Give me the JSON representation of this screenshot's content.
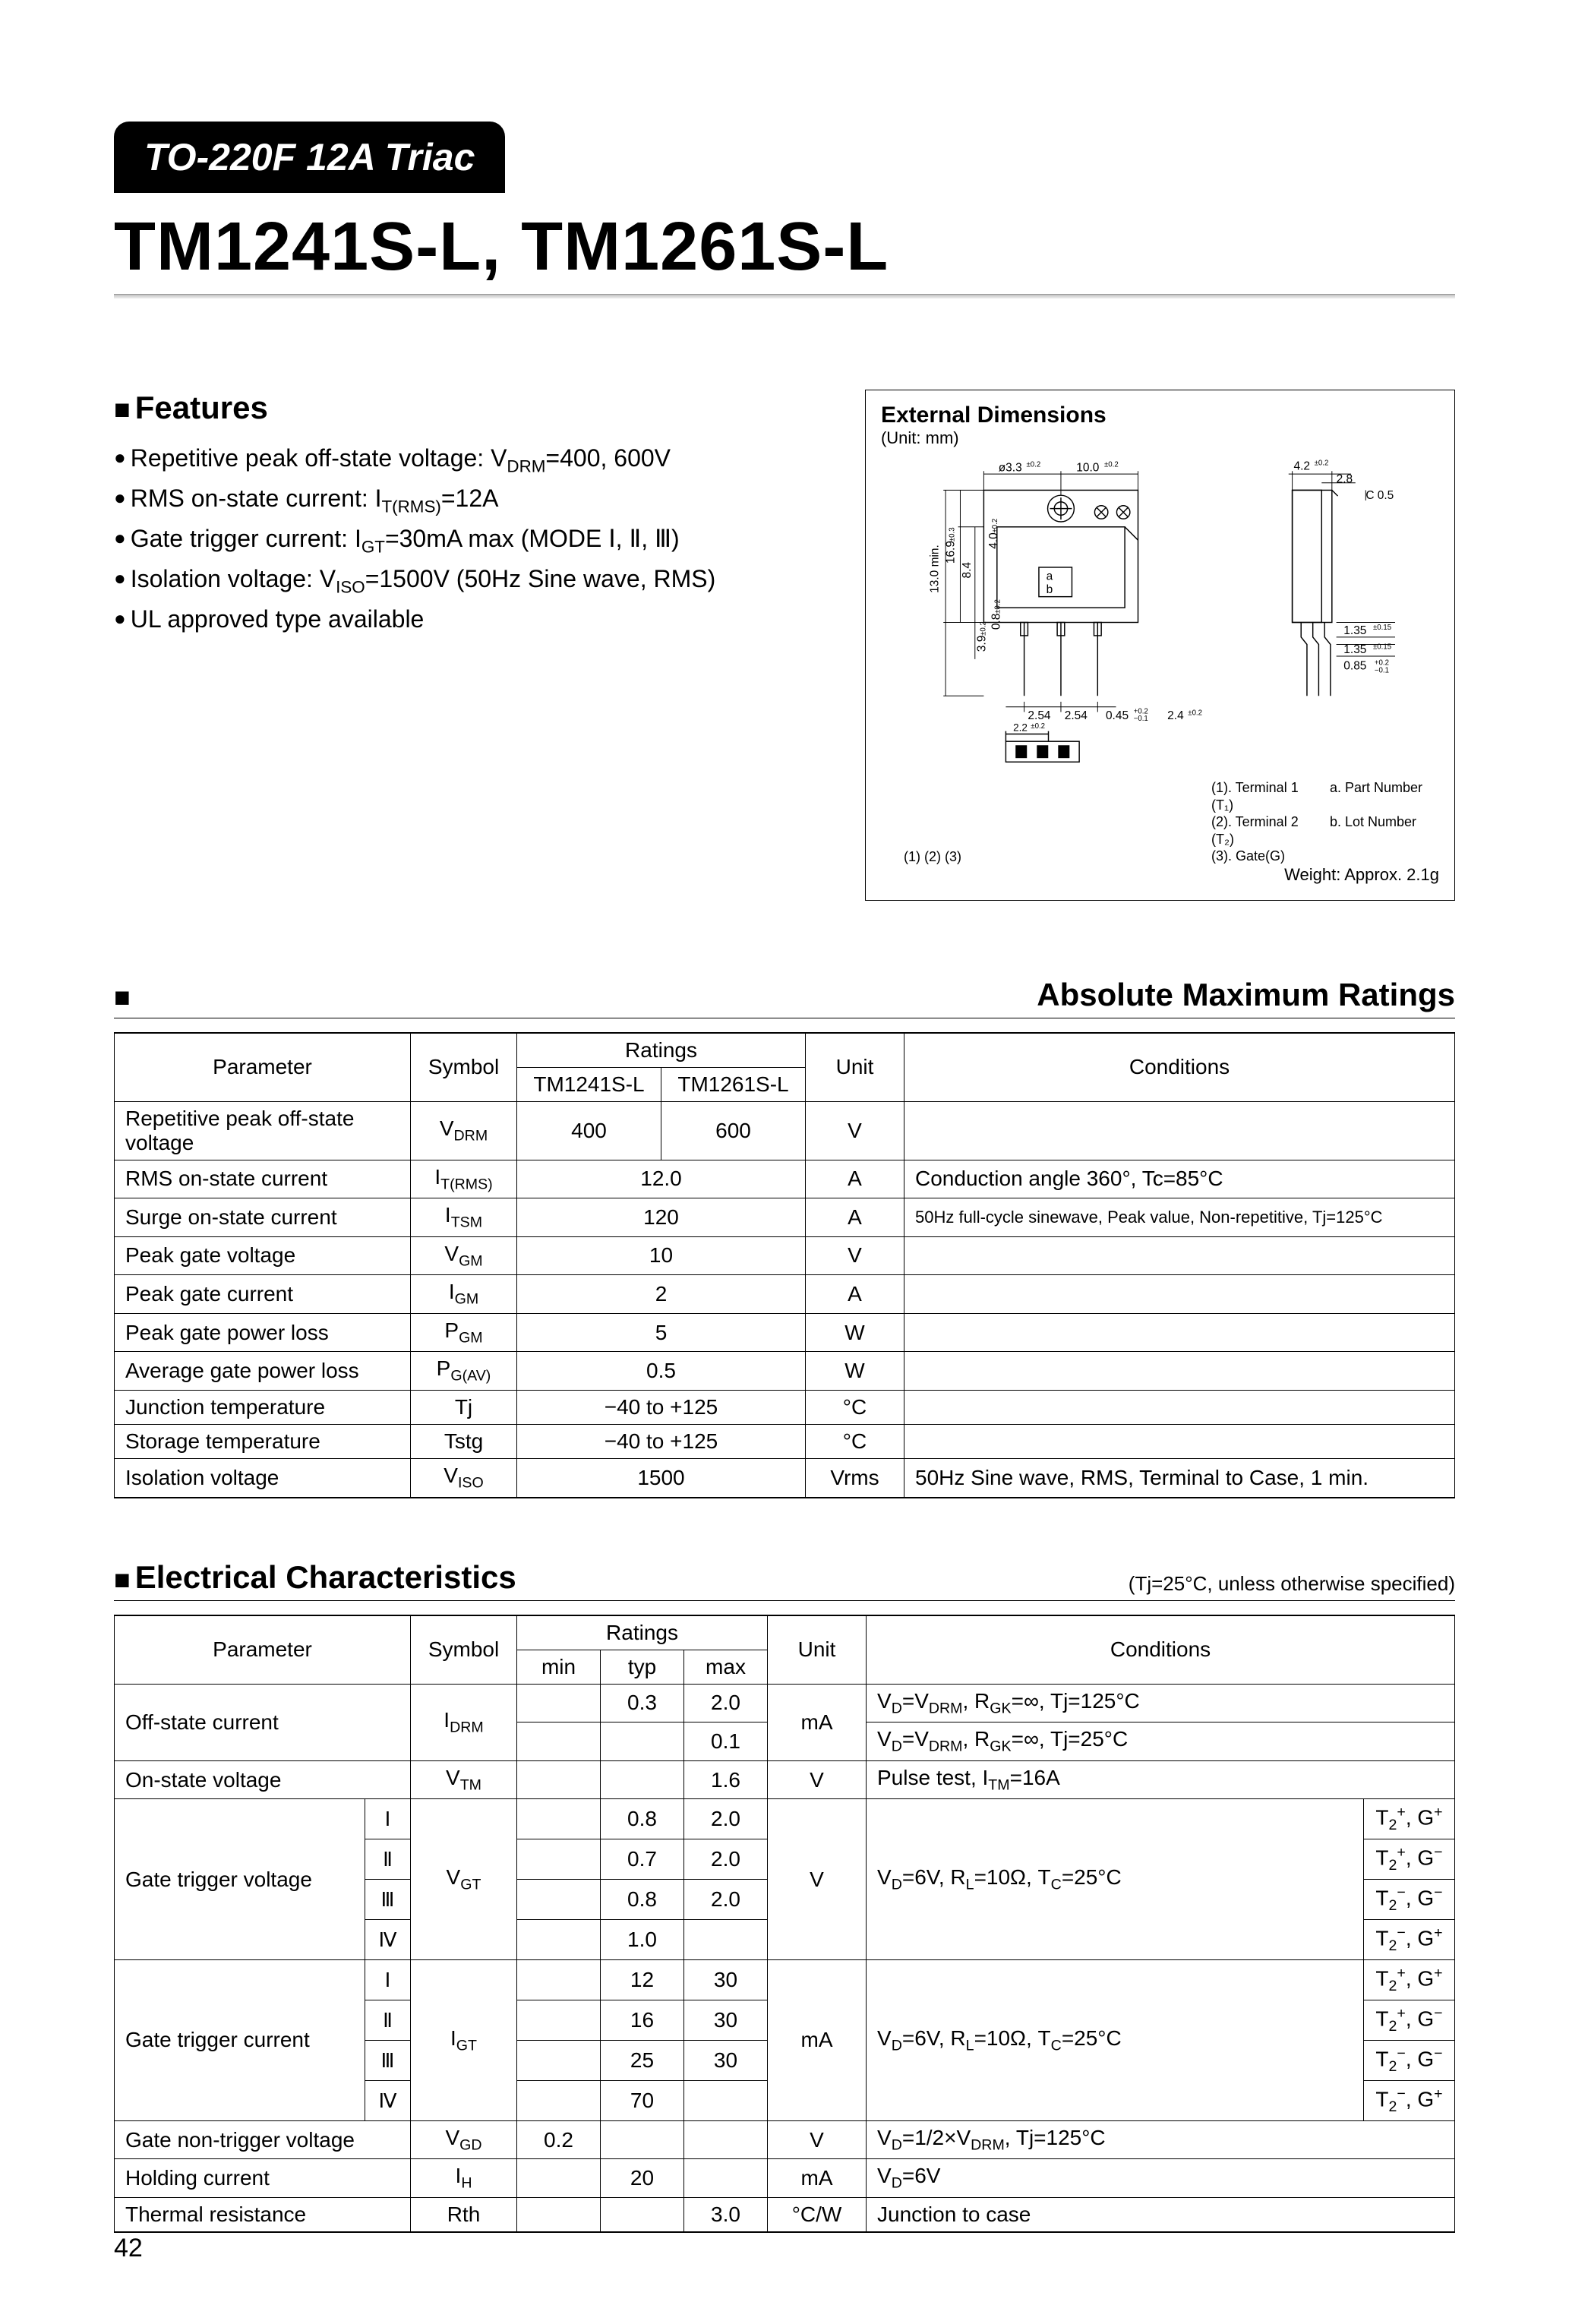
{
  "badge": "TO-220F 12A Triac",
  "main_title": "TM1241S-L, TM1261S-L",
  "features_heading": "Features",
  "features": [
    {
      "html": "Repetitive peak off-state voltage: V<span class=\"sub\">DRM</span>=400, 600V"
    },
    {
      "html": "RMS on-state current: I<span class=\"sub\">T(RMS)</span>=12A"
    },
    {
      "html": "Gate trigger current: I<span class=\"sub\">GT</span>=30mA max (MODE Ⅰ, Ⅱ, Ⅲ)"
    },
    {
      "html": "Isolation voltage: V<span class=\"sub\">ISO</span>=1500V (50Hz Sine wave, RMS)"
    },
    {
      "html": "UL approved type available"
    }
  ],
  "ext": {
    "title": "External Dimensions",
    "unit": "(Unit: mm)",
    "dim_labels": [
      "ø3.3",
      "±0.2",
      "10.0",
      "±0.2",
      "16.9",
      "±0.3",
      "8.4",
      "4.0",
      "±0.2",
      "13.0 min.",
      "3.9",
      "±0.2",
      "0.8",
      "±0.2",
      "2.54",
      "2.54",
      "2.2",
      "±0.2",
      "0.45",
      "+0.2",
      "−0.1",
      "2.4",
      "±0.2",
      "4.2",
      "±0.2",
      "2.8",
      "C 0.5",
      "1.35",
      "±0.15",
      "1.35",
      "±0.15",
      "0.85",
      "+0.2",
      "−0.1",
      "a",
      "b"
    ],
    "legend": [
      "(1). Terminal 1 (T₁)",
      "(2). Terminal 2 (T₂)",
      "(3). Gate(G)",
      "a. Part Number",
      "b. Lot Number"
    ],
    "pins_label": "(1) (2) (3)",
    "weight": "Weight: Approx. 2.1g"
  },
  "abs": {
    "heading": "Absolute Maximum Ratings",
    "columns": [
      "Parameter",
      "Symbol",
      "Ratings",
      "Unit",
      "Conditions"
    ],
    "rating_sub": [
      "TM1241S-L",
      "TM1261S-L"
    ],
    "rows": [
      {
        "p": "Repetitive peak off-state voltage",
        "sym": "V<span class=\"sub\">DRM</span>",
        "r1": "400",
        "r2": "600",
        "u": "V",
        "c": ""
      },
      {
        "p": "RMS on-state current",
        "sym": "I<span class=\"sub\">T(RMS)</span>",
        "r": "12.0",
        "u": "A",
        "c": "Conduction angle 360°, Tc=85°C"
      },
      {
        "p": "Surge on-state current",
        "sym": "I<span class=\"sub\">TSM</span>",
        "r": "120",
        "u": "A",
        "c": "50Hz full-cycle sinewave, Peak value, Non-repetitive, Tj=125°C",
        "csmall": true
      },
      {
        "p": "Peak gate voltage",
        "sym": "V<span class=\"sub\">GM</span>",
        "r": "10",
        "u": "V",
        "c": ""
      },
      {
        "p": "Peak gate current",
        "sym": "I<span class=\"sub\">GM</span>",
        "r": "2",
        "u": "A",
        "c": ""
      },
      {
        "p": "Peak gate power loss",
        "sym": "P<span class=\"sub\">GM</span>",
        "r": "5",
        "u": "W",
        "c": ""
      },
      {
        "p": "Average gate power loss",
        "sym": "P<span class=\"sub\">G(AV)</span>",
        "r": "0.5",
        "u": "W",
        "c": ""
      },
      {
        "p": "Junction temperature",
        "sym": "Tj",
        "r": "−40 to +125",
        "u": "°C",
        "c": ""
      },
      {
        "p": "Storage temperature",
        "sym": "Tstg",
        "r": "−40 to +125",
        "u": "°C",
        "c": ""
      },
      {
        "p": "Isolation voltage",
        "sym": "V<span class=\"sub\">ISO</span>",
        "r": "1500",
        "u": "Vrms",
        "c": "50Hz Sine wave, RMS, Terminal to Case, 1 min."
      }
    ]
  },
  "elec": {
    "heading": "Electrical Characteristics",
    "note": "(Tj=25°C, unless otherwise specified)",
    "columns": [
      "Parameter",
      "Symbol",
      "Ratings",
      "Unit",
      "Conditions"
    ],
    "rating_sub": [
      "min",
      "typ",
      "max"
    ],
    "rows": [
      {
        "type": "split2",
        "p": "Off-state current",
        "sym": "I<span class=\"sub\">DRM</span>",
        "sub": [
          {
            "min": "",
            "typ": "0.3",
            "max": "2.0",
            "c": "V<span class=\"sub\">D</span>=V<span class=\"sub\">DRM</span>, R<span class=\"sub\">GK</span>=∞, Tj=125°C"
          },
          {
            "min": "",
            "typ": "",
            "max": "0.1",
            "c": "V<span class=\"sub\">D</span>=V<span class=\"sub\">DRM</span>, R<span class=\"sub\">GK</span>=∞, Tj=25°C"
          }
        ],
        "u": "mA"
      },
      {
        "type": "single",
        "p": "On-state voltage",
        "sym": "V<span class=\"sub\">TM</span>",
        "min": "",
        "typ": "",
        "max": "1.6",
        "u": "V",
        "c": "Pulse test, I<span class=\"sub\">TM</span>=16A"
      },
      {
        "type": "modes4",
        "p": "Gate trigger voltage",
        "sym": "V<span class=\"sub\">GT</span>",
        "modes": [
          {
            "m": "Ⅰ",
            "min": "",
            "typ": "0.8",
            "max": "2.0",
            "q": "T<span class=\"sub\">2</span><span class=\"sup\">+</span>, G<span class=\"sup\">+</span>"
          },
          {
            "m": "Ⅱ",
            "min": "",
            "typ": "0.7",
            "max": "2.0",
            "q": "T<span class=\"sub\">2</span><span class=\"sup\">+</span>, G<span class=\"sup\">−</span>"
          },
          {
            "m": "Ⅲ",
            "min": "",
            "typ": "0.8",
            "max": "2.0",
            "q": "T<span class=\"sub\">2</span><span class=\"sup\">−</span>, G<span class=\"sup\">−</span>"
          },
          {
            "m": "Ⅳ",
            "min": "",
            "typ": "1.0",
            "max": "",
            "q": "T<span class=\"sub\">2</span><span class=\"sup\">−</span>, G<span class=\"sup\">+</span>"
          }
        ],
        "u": "V",
        "c": "V<span class=\"sub\">D</span>=6V, R<span class=\"sub\">L</span>=10Ω, T<span class=\"sub\">C</span>=25°C"
      },
      {
        "type": "modes4",
        "p": "Gate trigger current",
        "sym": "I<span class=\"sub\">GT</span>",
        "modes": [
          {
            "m": "Ⅰ",
            "min": "",
            "typ": "12",
            "max": "30",
            "q": "T<span class=\"sub\">2</span><span class=\"sup\">+</span>, G<span class=\"sup\">+</span>"
          },
          {
            "m": "Ⅱ",
            "min": "",
            "typ": "16",
            "max": "30",
            "q": "T<span class=\"sub\">2</span><span class=\"sup\">+</span>, G<span class=\"sup\">−</span>"
          },
          {
            "m": "Ⅲ",
            "min": "",
            "typ": "25",
            "max": "30",
            "q": "T<span class=\"sub\">2</span><span class=\"sup\">−</span>, G<span class=\"sup\">−</span>"
          },
          {
            "m": "Ⅳ",
            "min": "",
            "typ": "70",
            "max": "",
            "q": "T<span class=\"sub\">2</span><span class=\"sup\">−</span>, G<span class=\"sup\">+</span>"
          }
        ],
        "u": "mA",
        "c": "V<span class=\"sub\">D</span>=6V, R<span class=\"sub\">L</span>=10Ω, T<span class=\"sub\">C</span>=25°C"
      },
      {
        "type": "single_wide",
        "p": "Gate non-trigger voltage",
        "sym": "V<span class=\"sub\">GD</span>",
        "min": "0.2",
        "typ": "",
        "max": "",
        "u": "V",
        "c": "V<span class=\"sub\">D</span>=1/2×V<span class=\"sub\">DRM</span>, Tj=125°C"
      },
      {
        "type": "single_wide",
        "p": "Holding current",
        "sym": "I<span class=\"sub\">H</span>",
        "min": "",
        "typ": "20",
        "max": "",
        "u": "mA",
        "c": "V<span class=\"sub\">D</span>=6V"
      },
      {
        "type": "single_wide",
        "p": "Thermal resistance",
        "sym": "Rth",
        "min": "",
        "typ": "",
        "max": "3.0",
        "u": "°C/W",
        "c": "Junction to case"
      }
    ]
  },
  "page_num": "42",
  "colors": {
    "text": "#000000",
    "bg": "#ffffff",
    "badge_bg": "#000000",
    "badge_fg": "#ffffff"
  }
}
